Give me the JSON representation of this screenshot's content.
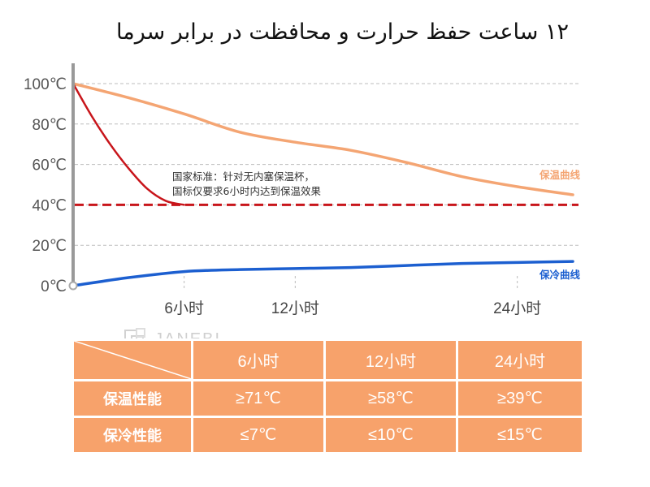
{
  "title": "۱۲ ساعت حفظ حرارت و محافظت در برابر سرما",
  "watermark": "JANEBI",
  "chart_data": {
    "type": "line",
    "y_ticks": [
      "0℃",
      "20℃",
      "40℃",
      "60℃",
      "80℃",
      "100℃"
    ],
    "y_tick_values": [
      0,
      20,
      40,
      60,
      80,
      100
    ],
    "ylim": [
      0,
      100
    ],
    "x_ticks": [
      "6小时",
      "12小时",
      "24小时"
    ],
    "x_tick_values": [
      6,
      12,
      24
    ],
    "xlim": [
      0,
      27
    ],
    "grid": true,
    "series": [
      {
        "name": "保温曲线",
        "color": "#f4a573",
        "points": [
          [
            0,
            100
          ],
          [
            3,
            93
          ],
          [
            6,
            85
          ],
          [
            9,
            76
          ],
          [
            12,
            71
          ],
          [
            15,
            67
          ],
          [
            18,
            61
          ],
          [
            21,
            54
          ],
          [
            24,
            49
          ],
          [
            27,
            45
          ]
        ]
      },
      {
        "name": "保冷曲线",
        "color": "#1c5fd0",
        "points": [
          [
            0,
            0
          ],
          [
            3,
            4
          ],
          [
            6,
            7
          ],
          [
            9,
            8
          ],
          [
            12,
            8.5
          ],
          [
            15,
            9
          ],
          [
            18,
            10
          ],
          [
            21,
            11
          ],
          [
            24,
            11.5
          ],
          [
            27,
            12
          ]
        ]
      },
      {
        "name": "",
        "color": "#c8151b",
        "points": [
          [
            0,
            100
          ],
          [
            1,
            84
          ],
          [
            2,
            70
          ],
          [
            3,
            58
          ],
          [
            4,
            48
          ],
          [
            5,
            42
          ],
          [
            6,
            40
          ]
        ]
      }
    ],
    "reference_line": {
      "y": 40,
      "color": "#c8151b",
      "style": "dashed"
    },
    "annotation_lines": [
      "国家标准：针对无内塞保温杯，",
      "国标仅要求6小时内达到保温效果"
    ]
  },
  "table": {
    "headers": [
      "6小时",
      "12小时",
      "24小时"
    ],
    "rows": [
      {
        "label": "保温性能",
        "values": [
          "≥71℃",
          "≥58℃",
          "≥39℃"
        ]
      },
      {
        "label": "保冷性能",
        "values": [
          "≤7℃",
          "≤10℃",
          "≤15℃"
        ]
      }
    ]
  }
}
